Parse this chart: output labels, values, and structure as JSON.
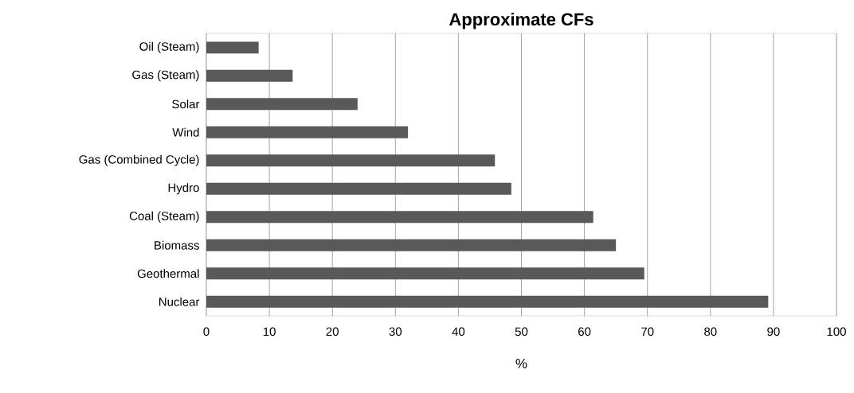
{
  "chart_data": {
    "type": "bar",
    "orientation": "horizontal",
    "title": "Approximate CFs",
    "xlabel": "%",
    "categories": [
      "Oil (Steam)",
      "Gas (Steam)",
      "Solar",
      "Wind",
      "Gas (Combined Cycle)",
      "Hydro",
      "Coal (Steam)",
      "Biomass",
      "Geothermal",
      "Nuclear"
    ],
    "values": [
      8.3,
      13.7,
      24.0,
      32.0,
      45.8,
      48.4,
      61.4,
      65.0,
      69.5,
      89.2
    ],
    "color": "#595959",
    "xlim": [
      0,
      100
    ],
    "xticks": [
      0,
      10,
      20,
      30,
      40,
      50,
      60,
      70,
      80,
      90,
      100
    ],
    "grid": "x"
  }
}
